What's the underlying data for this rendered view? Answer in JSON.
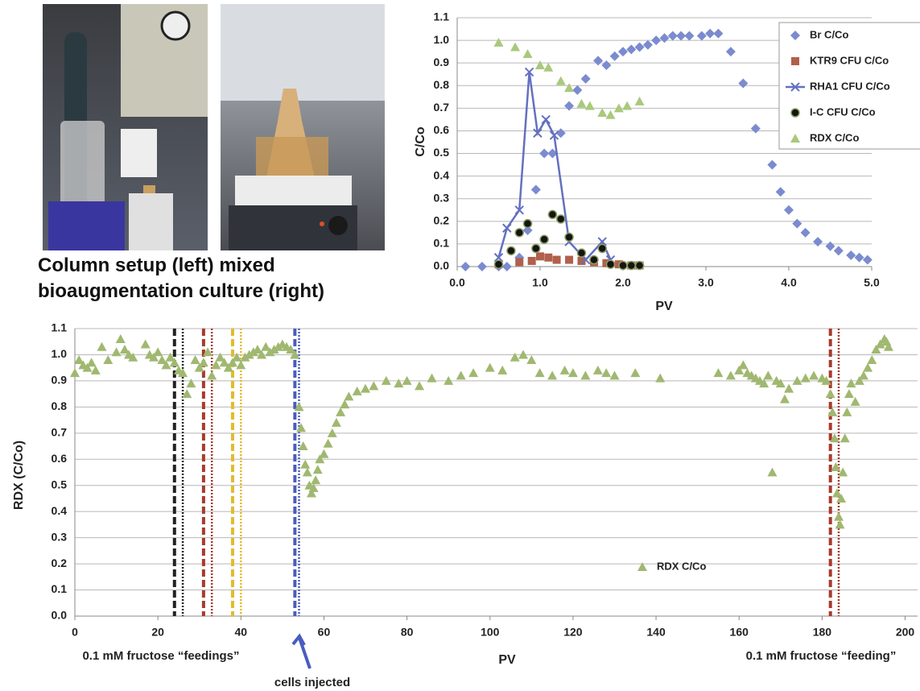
{
  "caption": "Column setup (left) mixed bioaugmentation culture (right)",
  "chart_data": [
    {
      "type": "scatter",
      "x_label": "PV",
      "y_label": "C/Co",
      "legend": "upper right",
      "grid": true,
      "xlim": [
        0,
        5
      ],
      "ylim": [
        0,
        1.1
      ],
      "xticks": [
        {
          "value": 0,
          "label": "0.0"
        },
        {
          "value": 1,
          "label": "1.0"
        },
        {
          "value": 2,
          "label": "2.0"
        },
        {
          "value": 3,
          "label": "3.0"
        },
        {
          "value": 4,
          "label": "4.0"
        },
        {
          "value": 5,
          "label": "5.0"
        }
      ],
      "yticks": [
        {
          "value": 0,
          "label": "0.0"
        },
        0.1,
        0.2,
        0.3,
        0.4,
        0.5,
        0.6,
        0.7,
        0.8,
        0.9,
        {
          "value": 1,
          "label": "1.0"
        },
        1.1
      ],
      "series": [
        {
          "name": "Br C/Co",
          "color": "#7b8bcf",
          "marker": "diamond",
          "x": [
            0.1,
            0.3,
            0.5,
            0.6,
            0.75,
            0.85,
            0.95,
            1.05,
            1.15,
            1.25,
            1.35,
            1.45,
            1.55,
            1.7,
            1.8,
            1.9,
            2.0,
            2.1,
            2.2,
            2.3,
            2.4,
            2.5,
            2.6,
            2.7,
            2.8,
            2.95,
            3.05,
            3.15,
            3.3,
            3.45,
            3.6,
            3.8,
            3.9,
            4.0,
            4.1,
            4.2,
            4.35,
            4.5,
            4.6,
            4.75,
            4.85,
            4.95
          ],
          "values": [
            0,
            0,
            0,
            0,
            0.04,
            0.16,
            0.34,
            0.5,
            0.5,
            0.59,
            0.71,
            0.78,
            0.83,
            0.91,
            0.89,
            0.93,
            0.95,
            0.96,
            0.97,
            0.98,
            1.0,
            1.01,
            1.02,
            1.02,
            1.02,
            1.02,
            1.03,
            1.03,
            0.95,
            0.81,
            0.61,
            0.45,
            0.33,
            0.25,
            0.19,
            0.15,
            0.11,
            0.09,
            0.07,
            0.05,
            0.04,
            0.03
          ]
        },
        {
          "name": "KTR9 CFU C/Co",
          "color": "#b0604c",
          "marker": "square",
          "x": [
            0.5,
            0.75,
            0.9,
            1.0,
            1.1,
            1.2,
            1.35,
            1.5,
            1.65,
            1.8,
            1.95,
            2.1,
            2.2
          ],
          "values": [
            0.01,
            0.02,
            0.025,
            0.045,
            0.04,
            0.03,
            0.03,
            0.025,
            0.02,
            0.015,
            0.01,
            0.005,
            0.005
          ]
        },
        {
          "name": "RHA1 CFU C/Co",
          "color": "#6470c0",
          "marker": "x",
          "line": true,
          "x": [
            0.5,
            0.6,
            0.75,
            0.87,
            0.97,
            1.07,
            1.17,
            1.35,
            1.55,
            1.75,
            1.85
          ],
          "values": [
            0.04,
            0.17,
            0.25,
            0.86,
            0.59,
            0.65,
            0.58,
            0.11,
            0.03,
            0.11,
            0.03
          ]
        },
        {
          "name": "I-C CFU C/Co",
          "color": "#8aa060",
          "marker": "circle",
          "x": [
            0.5,
            0.65,
            0.75,
            0.85,
            0.95,
            1.05,
            1.15,
            1.25,
            1.35,
            1.5,
            1.65,
            1.75,
            1.85,
            2.0,
            2.1,
            2.2
          ],
          "values": [
            0.01,
            0.07,
            0.15,
            0.19,
            0.08,
            0.12,
            0.23,
            0.21,
            0.13,
            0.06,
            0.03,
            0.08,
            0.01,
            0.005,
            0.005,
            0.005
          ]
        },
        {
          "name": "RDX C/Co",
          "color": "#a9c97c",
          "marker": "triangle",
          "x": [
            0.5,
            0.7,
            0.85,
            1.0,
            1.1,
            1.25,
            1.35,
            1.5,
            1.6,
            1.75,
            1.85,
            1.95,
            2.05,
            2.2
          ],
          "values": [
            0.99,
            0.97,
            0.94,
            0.89,
            0.88,
            0.82,
            0.79,
            0.72,
            0.71,
            0.68,
            0.67,
            0.7,
            0.71,
            0.73
          ]
        }
      ]
    },
    {
      "type": "scatter",
      "x_label": "PV",
      "y_label": "RDX  (C/Co)",
      "legend": "center",
      "grid": true,
      "xlim": [
        0,
        203
      ],
      "ylim": [
        0,
        1.1
      ],
      "xticks": [
        0,
        20,
        40,
        60,
        80,
        100,
        120,
        140,
        160,
        180,
        200
      ],
      "yticks": [
        {
          "value": 0,
          "label": "0.0"
        },
        0.1,
        0.2,
        0.3,
        0.4,
        0.5,
        0.6,
        0.7,
        0.8,
        0.9,
        {
          "value": 1,
          "label": "1.0"
        },
        1.1
      ],
      "annotations": [
        "0.1 mM fructose “feedings”",
        "cells injected",
        "0.1 mM fructose “feeding”"
      ],
      "vlines": [
        {
          "x": 24,
          "color": "#222222",
          "style": "dashed"
        },
        {
          "x": 26,
          "color": "#222222",
          "style": "dotted"
        },
        {
          "x": 31,
          "color": "#a83a2c",
          "style": "dashed"
        },
        {
          "x": 33,
          "color": "#a83a2c",
          "style": "dotted"
        },
        {
          "x": 38,
          "color": "#e2bb2e",
          "style": "dashed"
        },
        {
          "x": 40,
          "color": "#e2bb2e",
          "style": "dotted"
        },
        {
          "x": 53,
          "color": "#4a5cc0",
          "style": "dashed"
        },
        {
          "x": 54,
          "color": "#4a5cc0",
          "style": "dotted"
        },
        {
          "x": 182,
          "color": "#a83a2c",
          "style": "dashed"
        },
        {
          "x": 184,
          "color": "#a83a2c",
          "style": "dotted"
        }
      ],
      "series": [
        {
          "name": "RDX C/Co",
          "color": "#a0b870",
          "marker": "triangle",
          "x": [
            0,
            1,
            2,
            3,
            4,
            5,
            6.5,
            8,
            10,
            11,
            12,
            13,
            14,
            17,
            18,
            19,
            20,
            21,
            22,
            23,
            24,
            25,
            26,
            27,
            28,
            29,
            30,
            31,
            32,
            33,
            34,
            35,
            36,
            37,
            38,
            39,
            40,
            41,
            42,
            43,
            44,
            45,
            46,
            47,
            48,
            49,
            50,
            51,
            52,
            53,
            54,
            54.5,
            55,
            55.5,
            56,
            56.5,
            57,
            57.5,
            58,
            58.5,
            59,
            60,
            61,
            62,
            63,
            64,
            65,
            66,
            68,
            70,
            72,
            75,
            78,
            80,
            83,
            86,
            90,
            93,
            96,
            100,
            103,
            106,
            108,
            110,
            112,
            115,
            118,
            120,
            123,
            126,
            128,
            130,
            135,
            141,
            155,
            158,
            160,
            161,
            162,
            163,
            164,
            165,
            166,
            167,
            168,
            169,
            170,
            171,
            172,
            174,
            176,
            178,
            180,
            181,
            182,
            182.5,
            183,
            183.3,
            183.6,
            184,
            184.3,
            184.6,
            185,
            185.5,
            186,
            186.5,
            187,
            188,
            189,
            190,
            191,
            192,
            193,
            194,
            195,
            195.5,
            196
          ],
          "values": [
            0.93,
            0.98,
            0.96,
            0.95,
            0.97,
            0.94,
            1.03,
            0.98,
            1.01,
            1.06,
            1.02,
            1.0,
            0.99,
            1.04,
            1.0,
            0.99,
            1.01,
            0.98,
            0.96,
            0.99,
            0.97,
            0.94,
            0.93,
            0.85,
            0.89,
            0.98,
            0.95,
            0.97,
            1.01,
            0.92,
            0.96,
            0.99,
            0.97,
            0.95,
            0.97,
            0.99,
            0.96,
            0.99,
            1.0,
            1.01,
            1.02,
            1.0,
            1.03,
            1.01,
            1.02,
            1.03,
            1.04,
            1.03,
            1.02,
            1.0,
            0.8,
            0.72,
            0.65,
            0.58,
            0.55,
            0.5,
            0.47,
            0.49,
            0.52,
            0.56,
            0.6,
            0.62,
            0.66,
            0.7,
            0.74,
            0.78,
            0.81,
            0.84,
            0.86,
            0.87,
            0.88,
            0.9,
            0.89,
            0.9,
            0.88,
            0.91,
            0.9,
            0.92,
            0.93,
            0.95,
            0.94,
            0.99,
            1.0,
            0.98,
            0.93,
            0.92,
            0.94,
            0.93,
            0.92,
            0.94,
            0.93,
            0.92,
            0.93,
            0.91,
            0.93,
            0.92,
            0.94,
            0.96,
            0.93,
            0.92,
            0.91,
            0.9,
            0.89,
            0.92,
            0.55,
            0.9,
            0.89,
            0.83,
            0.87,
            0.9,
            0.91,
            0.92,
            0.91,
            0.9,
            0.85,
            0.78,
            0.68,
            0.57,
            0.47,
            0.38,
            0.35,
            0.45,
            0.55,
            0.68,
            0.78,
            0.85,
            0.89,
            0.82,
            0.9,
            0.92,
            0.95,
            0.98,
            1.02,
            1.04,
            1.06,
            1.05,
            1.03
          ]
        }
      ]
    }
  ]
}
